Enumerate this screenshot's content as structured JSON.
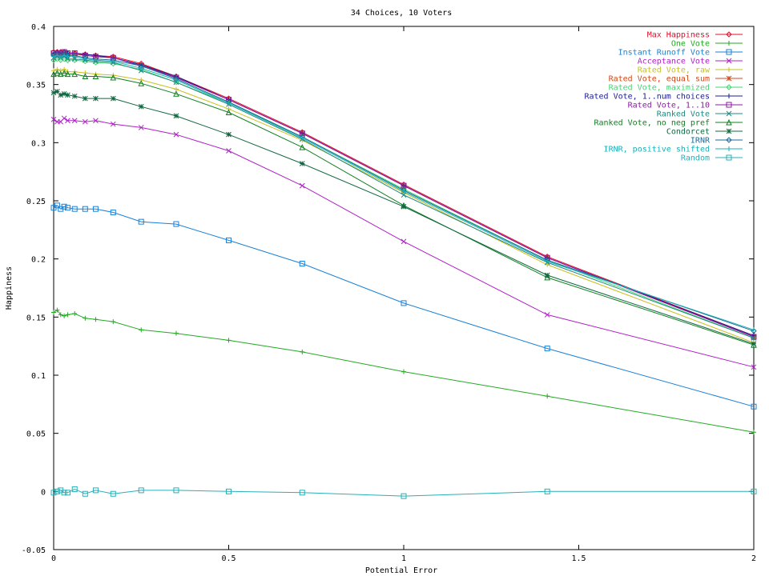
{
  "chart_data": {
    "type": "line",
    "title": "34 Choices, 10 Voters",
    "xlabel": "Potential Error",
    "ylabel": "Happiness",
    "xlim": [
      0,
      2
    ],
    "ylim": [
      -0.05,
      0.4
    ],
    "xticks": [
      "0",
      "0.5",
      "1",
      "1.5",
      "2"
    ],
    "yticks": [
      "-0.05",
      "0",
      "0.05",
      "0.1",
      "0.15",
      "0.2",
      "0.25",
      "0.3",
      "0.35",
      "0.4"
    ],
    "grid": false,
    "legend_position": "top-right",
    "x": [
      0,
      0.01,
      0.02,
      0.03,
      0.04,
      0.06,
      0.09,
      0.12,
      0.17,
      0.25,
      0.35,
      0.5,
      0.71,
      1.0,
      1.41,
      2.0
    ],
    "series": [
      {
        "name": "Max Happiness",
        "color": "#e0102a",
        "marker": "diamond",
        "values": [
          0.378,
          0.378,
          0.378,
          0.378,
          0.377,
          0.377,
          0.376,
          0.375,
          0.374,
          0.368,
          0.357,
          0.338,
          0.309,
          0.264,
          0.202,
          0.134
        ]
      },
      {
        "name": "One Vote",
        "color": "#22aa22",
        "marker": "plus",
        "values": [
          0.154,
          0.156,
          0.152,
          0.151,
          0.152,
          0.153,
          0.149,
          0.148,
          0.146,
          0.139,
          0.136,
          0.13,
          0.12,
          0.103,
          0.082,
          0.051
        ]
      },
      {
        "name": "Instant Runoff Vote",
        "color": "#1a80d8",
        "marker": "square",
        "values": [
          0.244,
          0.246,
          0.243,
          0.245,
          0.244,
          0.243,
          0.243,
          0.243,
          0.24,
          0.232,
          0.23,
          0.216,
          0.196,
          0.162,
          0.123,
          0.073
        ]
      },
      {
        "name": "Acceptance Vote",
        "color": "#b020c8",
        "marker": "x",
        "values": [
          0.32,
          0.318,
          0.318,
          0.321,
          0.319,
          0.319,
          0.318,
          0.319,
          0.316,
          0.313,
          0.307,
          0.293,
          0.263,
          0.215,
          0.152,
          0.107
        ]
      },
      {
        "name": "Rated Vote, raw",
        "color": "#c8c020",
        "marker": "plus",
        "values": [
          0.362,
          0.363,
          0.362,
          0.363,
          0.361,
          0.361,
          0.36,
          0.359,
          0.358,
          0.354,
          0.346,
          0.329,
          0.302,
          0.257,
          0.195,
          0.128
        ]
      },
      {
        "name": "Rated Vote, equal sum",
        "color": "#d04818",
        "marker": "star",
        "values": [
          0.376,
          0.377,
          0.376,
          0.377,
          0.376,
          0.376,
          0.375,
          0.374,
          0.373,
          0.367,
          0.356,
          0.337,
          0.308,
          0.263,
          0.201,
          0.133
        ]
      },
      {
        "name": "Rated Vote, maximized",
        "color": "#40d870",
        "marker": "diamond",
        "values": [
          0.371,
          0.372,
          0.371,
          0.372,
          0.371,
          0.371,
          0.37,
          0.369,
          0.368,
          0.363,
          0.352,
          0.334,
          0.305,
          0.26,
          0.199,
          0.132
        ]
      },
      {
        "name": "Rated Vote, 1..num choices",
        "color": "#1c1c90",
        "marker": "plus",
        "values": [
          0.377,
          0.378,
          0.377,
          0.378,
          0.377,
          0.377,
          0.376,
          0.375,
          0.373,
          0.367,
          0.357,
          0.337,
          0.308,
          0.263,
          0.201,
          0.134
        ]
      },
      {
        "name": "Rated Vote, 1..10",
        "color": "#9018a8",
        "marker": "square",
        "values": [
          0.377,
          0.377,
          0.377,
          0.378,
          0.377,
          0.377,
          0.375,
          0.374,
          0.373,
          0.366,
          0.356,
          0.337,
          0.308,
          0.263,
          0.201,
          0.133
        ]
      },
      {
        "name": "Ranked Vote",
        "color": "#208880",
        "marker": "x",
        "values": [
          0.373,
          0.374,
          0.373,
          0.374,
          0.372,
          0.372,
          0.371,
          0.37,
          0.369,
          0.362,
          0.352,
          0.333,
          0.303,
          0.255,
          0.197,
          0.132
        ]
      },
      {
        "name": "Ranked Vote, no neg pref",
        "color": "#108020",
        "marker": "triangle",
        "values": [
          0.359,
          0.36,
          0.359,
          0.36,
          0.359,
          0.359,
          0.357,
          0.357,
          0.356,
          0.351,
          0.342,
          0.326,
          0.296,
          0.246,
          0.184,
          0.126
        ]
      },
      {
        "name": "Condorcet",
        "color": "#106840",
        "marker": "star",
        "values": [
          0.343,
          0.344,
          0.341,
          0.342,
          0.341,
          0.34,
          0.338,
          0.338,
          0.338,
          0.331,
          0.323,
          0.307,
          0.282,
          0.245,
          0.186,
          0.127
        ]
      },
      {
        "name": "IRNR",
        "color": "#1a6a98",
        "marker": "diamond",
        "values": [
          0.376,
          0.376,
          0.376,
          0.376,
          0.375,
          0.375,
          0.373,
          0.372,
          0.371,
          0.366,
          0.355,
          0.335,
          0.305,
          0.259,
          0.199,
          0.138
        ]
      },
      {
        "name": "IRNR, positive shifted",
        "color": "#18b0b8",
        "marker": "plus",
        "values": [
          0.374,
          0.375,
          0.374,
          0.375,
          0.374,
          0.374,
          0.372,
          0.371,
          0.37,
          0.364,
          0.354,
          0.334,
          0.304,
          0.258,
          0.198,
          0.139
        ]
      },
      {
        "name": "Random",
        "color": "#28b0b8",
        "marker": "square",
        "values": [
          -0.001,
          0.0,
          0.001,
          -0.001,
          -0.001,
          0.002,
          -0.002,
          0.001,
          -0.002,
          0.001,
          0.001,
          0.0,
          -0.001,
          -0.004,
          0.0,
          0.0
        ]
      }
    ]
  }
}
